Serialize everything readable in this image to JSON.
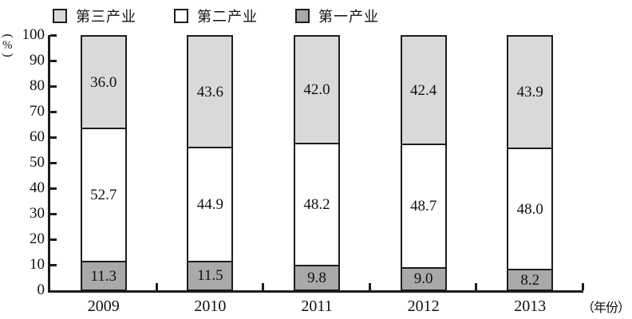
{
  "legend": {
    "items": [
      {
        "label": "第三产业",
        "color": "#d9d9d9"
      },
      {
        "label": "第二产业",
        "color": "#ffffff"
      },
      {
        "label": "第一产业",
        "color": "#a9a9a9"
      }
    ]
  },
  "axes": {
    "y_unit": "(%)",
    "x_unit": "（年份）",
    "y_ticks": [
      0,
      10,
      20,
      30,
      40,
      50,
      60,
      70,
      80,
      90,
      100
    ]
  },
  "chart_data": {
    "type": "bar",
    "stacked": true,
    "title": "",
    "categories": [
      "2009",
      "2010",
      "2011",
      "2012",
      "2013"
    ],
    "series": [
      {
        "name": "第一产业",
        "color": "#a9a9a9",
        "values": [
          11.3,
          11.5,
          9.8,
          9.0,
          8.2
        ]
      },
      {
        "name": "第二产业",
        "color": "#ffffff",
        "values": [
          52.7,
          44.9,
          48.2,
          48.7,
          48.0
        ]
      },
      {
        "name": "第三产业",
        "color": "#d9d9d9",
        "values": [
          36.0,
          43.6,
          42.0,
          42.4,
          43.9
        ]
      }
    ],
    "xlabel": "年份",
    "ylabel": "%",
    "ylim": [
      0,
      100
    ],
    "grid": false,
    "value_labels": true,
    "legend_position": "top"
  }
}
